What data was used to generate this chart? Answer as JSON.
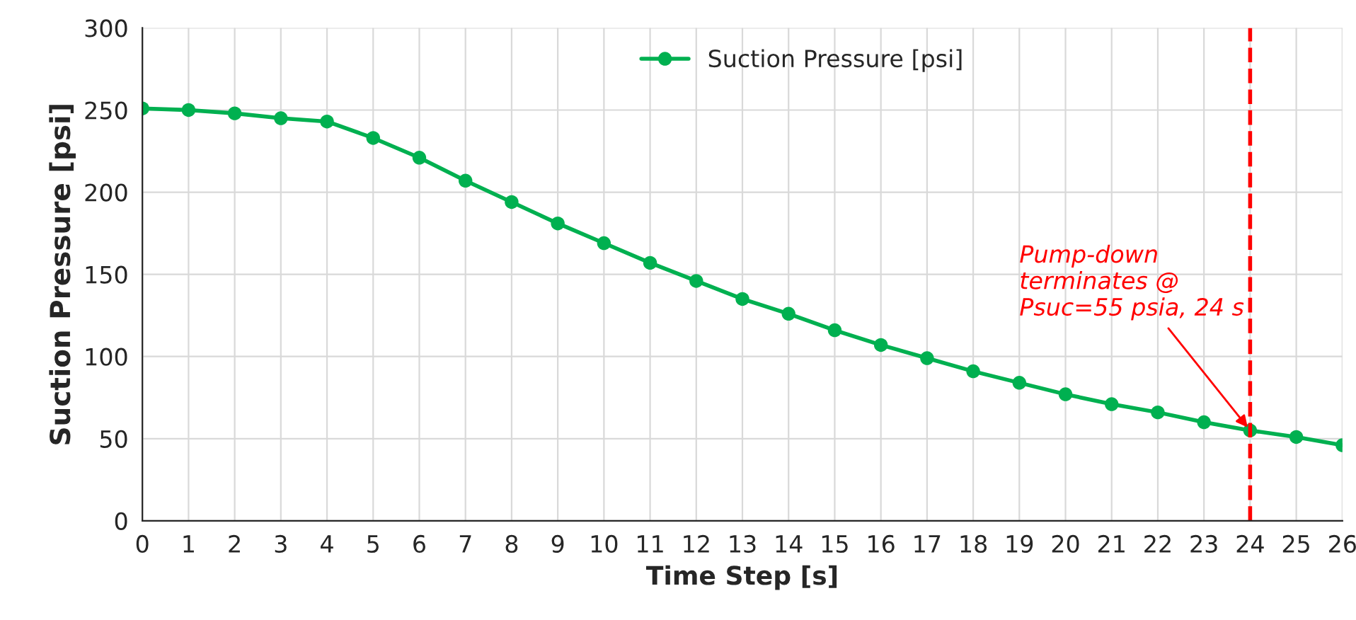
{
  "chart_data": {
    "type": "line",
    "xlabel": "Time Step [s]",
    "ylabel": "Suction Pressure [psi]",
    "x": [
      0,
      1,
      2,
      3,
      4,
      5,
      6,
      7,
      8,
      9,
      10,
      11,
      12,
      13,
      14,
      15,
      16,
      17,
      18,
      19,
      20,
      21,
      22,
      23,
      24,
      25,
      26
    ],
    "series": [
      {
        "name": "Suction Pressure [psi]",
        "color": "#00b050",
        "values": [
          251,
          250,
          248,
          245,
          243,
          233,
          221,
          207,
          194,
          181,
          169,
          157,
          146,
          135,
          126,
          116,
          107,
          99,
          91,
          84,
          77,
          71,
          66,
          60,
          55,
          51,
          46
        ]
      }
    ],
    "xlim": [
      0,
      26
    ],
    "xticks": [
      0,
      1,
      2,
      3,
      4,
      5,
      6,
      7,
      8,
      9,
      10,
      11,
      12,
      13,
      14,
      15,
      16,
      17,
      18,
      19,
      20,
      21,
      22,
      23,
      24,
      25,
      26
    ],
    "ylim": [
      0,
      300
    ],
    "yticks": [
      0,
      50,
      100,
      150,
      200,
      250,
      300
    ],
    "ref_lines": [
      {
        "axis": "x",
        "value": 24,
        "color": "#ff0000",
        "line_style": "dashed"
      }
    ],
    "annotations": [
      {
        "text": "Pump-down\nterminates @\nPsuc=55 psia, 24 s",
        "x": 24,
        "y": 55
      }
    ],
    "grid": true,
    "legend": "top",
    "marker": "circle",
    "line_style": "solid"
  }
}
